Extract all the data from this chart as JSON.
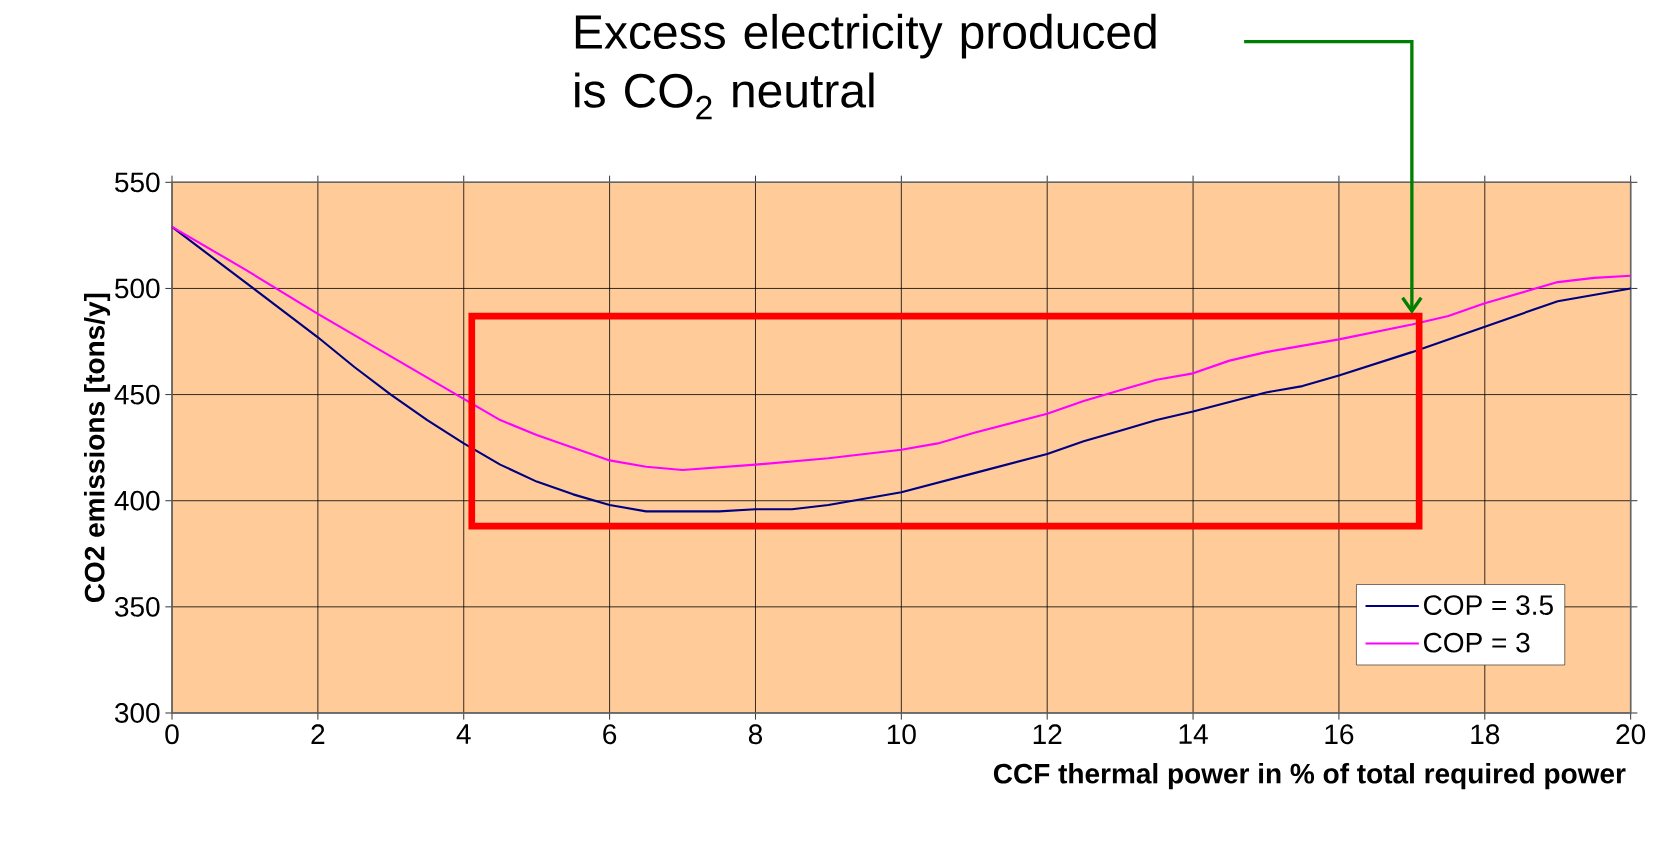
{
  "chart_data": {
    "type": "line",
    "xlabel": "CCF thermal power in % of total required power",
    "ylabel": "CO2 emissions [tons/y]",
    "annotations": [
      "Excess electricity produced is CO$_{2}$ neutral"
    ],
    "xlim": [
      0,
      20
    ],
    "xticks": [
      0,
      2,
      4,
      6,
      8,
      10,
      12,
      14,
      16,
      18,
      20
    ],
    "ylim": [
      300,
      550
    ],
    "yticks": [
      300,
      350,
      400,
      450,
      500,
      550
    ],
    "grid": true,
    "legend": "bottom right",
    "marker": "none",
    "line_style": "solid",
    "series": [
      {
        "name": "COP = 3.5",
        "color": "#000080",
        "x": [
          0,
          2,
          2.5,
          3,
          3.5,
          4,
          4.5,
          5,
          5.5,
          6,
          6.5,
          7,
          7.5,
          8,
          8.5,
          9,
          10,
          11,
          12,
          12.5,
          13,
          13.5,
          14,
          15,
          15.5,
          16,
          17,
          18,
          19,
          20
        ],
        "values": [
          529,
          477,
          463,
          450,
          438,
          427,
          417,
          409,
          403,
          398,
          395,
          395,
          395,
          396,
          396,
          398,
          404,
          413,
          422,
          428,
          433,
          438,
          442,
          451,
          454,
          459,
          470,
          482,
          494,
          500
        ]
      },
      {
        "name": "COP = 3",
        "color": "#ff00ff",
        "x": [
          0,
          1,
          2,
          3,
          4,
          4.5,
          5,
          5.5,
          6,
          6.5,
          7,
          8,
          9,
          10,
          10.5,
          11,
          12,
          12.5,
          13,
          13.5,
          14,
          14.5,
          15,
          16,
          17,
          17.5,
          18,
          19,
          19.5,
          20
        ],
        "values": [
          529,
          509,
          488,
          468,
          448,
          438,
          431,
          425,
          419,
          416,
          414.5,
          417,
          420,
          424,
          427,
          432,
          441,
          447,
          452,
          457,
          460,
          466,
          470,
          476,
          483,
          487,
          493,
          503,
          505,
          506
        ]
      }
    ]
  }
}
